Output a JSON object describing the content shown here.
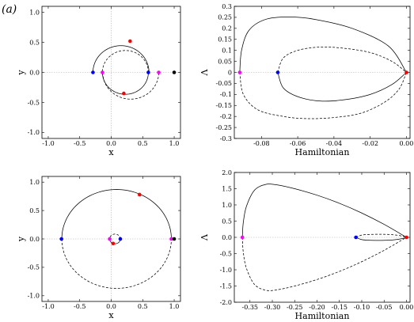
{
  "figure": {
    "panel_label": "(a)"
  },
  "colors": {
    "red": "#ff0000",
    "blue": "#0000ff",
    "magenta": "#ff00ff",
    "black": "#000000",
    "guide": "#b0b0b0"
  },
  "chart_data": [
    {
      "id": "top-left",
      "type": "line",
      "xlabel": "x",
      "ylabel": "y",
      "xlim": [
        -1.1,
        1.1
      ],
      "ylim": [
        -1.1,
        1.1
      ],
      "xticks": [
        -1.0,
        -0.5,
        0.0,
        0.5,
        1.0
      ],
      "yticks": [
        -1.0,
        -0.5,
        0.0,
        0.5,
        1.0
      ],
      "tick_labels_x": [
        "-1.0",
        "-0.5",
        "0.0",
        "0.5",
        "1.0"
      ],
      "tick_labels_y": [
        "-1.0",
        "-0.5",
        "0.0",
        "0.5",
        "1.0"
      ],
      "guides": {
        "x0": true,
        "y0": true
      },
      "series": [
        {
          "kind": "arc",
          "style": "solid",
          "center": [
            0.155,
            0.0
          ],
          "radius": 0.445,
          "from_deg": 0,
          "to_deg": 180
        },
        {
          "kind": "arc",
          "style": "solid",
          "center": [
            0.225,
            0.0
          ],
          "radius": 0.365,
          "from_deg": 180,
          "to_deg": 360
        },
        {
          "kind": "arc",
          "style": "dashed",
          "center": [
            0.31,
            0.0
          ],
          "radius": 0.445,
          "from_deg": 180,
          "to_deg": 360
        },
        {
          "kind": "arc",
          "style": "dashed",
          "center": [
            0.225,
            0.0
          ],
          "radius": 0.365,
          "from_deg": 0,
          "to_deg": 180
        }
      ],
      "points": [
        {
          "x": 0.3,
          "y": 0.52,
          "color": "red"
        },
        {
          "x": 0.2,
          "y": -0.35,
          "color": "red"
        },
        {
          "x": -0.29,
          "y": 0.0,
          "color": "blue"
        },
        {
          "x": 0.59,
          "y": 0.0,
          "color": "blue"
        },
        {
          "x": -0.14,
          "y": 0.0,
          "color": "magenta"
        },
        {
          "x": 0.755,
          "y": 0.0,
          "color": "magenta"
        },
        {
          "x": 1.0,
          "y": 0.0,
          "color": "black"
        }
      ]
    },
    {
      "id": "top-right",
      "type": "line",
      "xlabel": "Hamiltonian",
      "ylabel": "Λ",
      "xlim": [
        -0.095,
        0.002
      ],
      "ylim": [
        -0.3,
        0.3
      ],
      "xticks": [
        -0.08,
        -0.06,
        -0.04,
        -0.02,
        0.0
      ],
      "yticks": [
        -0.3,
        -0.25,
        -0.2,
        -0.15,
        -0.1,
        -0.05,
        0.0,
        0.05,
        0.1,
        0.15,
        0.2,
        0.25,
        0.3
      ],
      "tick_labels_x": [
        "-0.08",
        "-0.06",
        "-0.04",
        "-0.02",
        "0.00"
      ],
      "tick_labels_y": [
        "-0.3",
        "-0.25",
        "-0.2",
        "-0.15",
        "-0.1",
        "-0.05",
        "0",
        "0.05",
        "0.1",
        "0.15",
        "0.2",
        "0.25",
        "0.3"
      ],
      "guides": {
        "x0": false,
        "y0": true
      },
      "series": [
        {
          "kind": "curve",
          "style": "solid",
          "points": [
            [
              0.0,
              0.0
            ],
            [
              -0.01,
              0.12
            ],
            [
              -0.03,
              0.2
            ],
            [
              -0.05,
              0.24
            ],
            [
              -0.065,
              0.252
            ],
            [
              -0.078,
              0.24
            ],
            [
              -0.087,
              0.19
            ],
            [
              -0.091,
              0.1
            ],
            [
              -0.092,
              0.0
            ]
          ]
        },
        {
          "kind": "curve",
          "style": "dashed",
          "points": [
            [
              -0.092,
              0.0
            ],
            [
              -0.09,
              -0.1
            ],
            [
              -0.082,
              -0.17
            ],
            [
              -0.068,
              -0.2
            ],
            [
              -0.055,
              -0.21
            ],
            [
              -0.04,
              -0.205
            ],
            [
              -0.025,
              -0.185
            ],
            [
              -0.012,
              -0.135
            ],
            [
              -0.004,
              -0.075
            ],
            [
              0.0,
              0.0
            ]
          ]
        },
        {
          "kind": "curve",
          "style": "solid",
          "points": [
            [
              -0.071,
              0.0
            ],
            [
              -0.068,
              -0.07
            ],
            [
              -0.06,
              -0.11
            ],
            [
              -0.048,
              -0.13
            ],
            [
              -0.035,
              -0.125
            ],
            [
              -0.02,
              -0.1
            ],
            [
              -0.008,
              -0.055
            ],
            [
              0.0,
              0.0
            ]
          ]
        },
        {
          "kind": "curve",
          "style": "dashed",
          "points": [
            [
              -0.071,
              0.0
            ],
            [
              -0.068,
              0.065
            ],
            [
              -0.06,
              0.1
            ],
            [
              -0.048,
              0.115
            ],
            [
              -0.035,
              0.11
            ],
            [
              -0.02,
              0.09
            ],
            [
              -0.008,
              0.05
            ],
            [
              0.0,
              0.0
            ]
          ]
        }
      ],
      "points": [
        {
          "x": -0.092,
          "y": 0.0,
          "color": "magenta"
        },
        {
          "x": -0.071,
          "y": 0.0,
          "color": "blue"
        },
        {
          "x": 0.0,
          "y": 0.0,
          "color": "red"
        }
      ]
    },
    {
      "id": "bottom-left",
      "type": "line",
      "xlabel": "x",
      "ylabel": "y",
      "xlim": [
        -1.1,
        1.1
      ],
      "ylim": [
        -1.1,
        1.1
      ],
      "xticks": [
        -1.0,
        -0.5,
        0.0,
        0.5,
        1.0
      ],
      "yticks": [
        -1.0,
        -0.5,
        0.0,
        0.5,
        1.0
      ],
      "tick_labels_x": [
        "-1.0",
        "-0.5",
        "0.0",
        "0.5",
        "1.0"
      ],
      "tick_labels_y": [
        "-1.0",
        "-0.5",
        "0.0",
        "0.5",
        "1.0"
      ],
      "guides": {
        "x0": true,
        "y0": true
      },
      "series": [
        {
          "kind": "arc",
          "style": "solid",
          "center": [
            0.085,
            0.0
          ],
          "radius": 0.87,
          "from_deg": 0,
          "to_deg": 180
        },
        {
          "kind": "arc",
          "style": "dashed",
          "center": [
            0.085,
            0.0
          ],
          "radius": 0.87,
          "from_deg": 180,
          "to_deg": 360
        },
        {
          "kind": "arc",
          "style": "solid",
          "center": [
            0.06,
            0.0
          ],
          "radius": 0.085,
          "from_deg": 180,
          "to_deg": 360
        },
        {
          "kind": "arc",
          "style": "dashed",
          "center": [
            0.06,
            0.0
          ],
          "radius": 0.085,
          "from_deg": 0,
          "to_deg": 180
        }
      ],
      "points": [
        {
          "x": 0.45,
          "y": 0.78,
          "color": "red"
        },
        {
          "x": 0.03,
          "y": -0.08,
          "color": "red"
        },
        {
          "x": -0.79,
          "y": 0.0,
          "color": "blue"
        },
        {
          "x": 0.145,
          "y": 0.0,
          "color": "blue"
        },
        {
          "x": -0.025,
          "y": 0.0,
          "color": "magenta"
        },
        {
          "x": 0.955,
          "y": 0.0,
          "color": "magenta"
        },
        {
          "x": 1.0,
          "y": 0.0,
          "color": "black"
        }
      ]
    },
    {
      "id": "bottom-right",
      "type": "line",
      "xlabel": "Hamiltonian",
      "ylabel": "Λ",
      "xlim": [
        -0.385,
        0.008
      ],
      "ylim": [
        -2.0,
        2.0
      ],
      "xticks": [
        -0.35,
        -0.3,
        -0.25,
        -0.2,
        -0.15,
        -0.1,
        -0.05,
        0.0
      ],
      "yticks": [
        -2.0,
        -1.5,
        -1.0,
        -0.5,
        0.0,
        0.5,
        1.0,
        1.5,
        2.0
      ],
      "tick_labels_x": [
        "-0.35",
        "-0.30",
        "-0.25",
        "-0.20",
        "-0.15",
        "-0.10",
        "-0.05",
        "0.00"
      ],
      "tick_labels_y": [
        "-2.0",
        "-1.5",
        "-1.0",
        "-0.5",
        "0.0",
        "0.5",
        "1.0",
        "1.5",
        "2.0"
      ],
      "guides": {
        "x0": false,
        "y0": true
      },
      "series": [
        {
          "kind": "curve",
          "style": "solid",
          "points": [
            [
              0.0,
              0.0
            ],
            [
              -0.05,
              0.4
            ],
            [
              -0.1,
              0.75
            ],
            [
              -0.15,
              1.05
            ],
            [
              -0.2,
              1.3
            ],
            [
              -0.25,
              1.5
            ],
            [
              -0.29,
              1.62
            ],
            [
              -0.315,
              1.63
            ],
            [
              -0.34,
              1.45
            ],
            [
              -0.358,
              0.95
            ],
            [
              -0.365,
              0.45
            ],
            [
              -0.367,
              0.0
            ]
          ]
        },
        {
          "kind": "curve",
          "style": "dashed",
          "points": [
            [
              -0.367,
              0.0
            ],
            [
              -0.365,
              -0.45
            ],
            [
              -0.358,
              -0.95
            ],
            [
              -0.34,
              -1.45
            ],
            [
              -0.315,
              -1.63
            ],
            [
              -0.29,
              -1.62
            ],
            [
              -0.25,
              -1.5
            ],
            [
              -0.2,
              -1.3
            ],
            [
              -0.15,
              -1.05
            ],
            [
              -0.1,
              -0.75
            ],
            [
              -0.05,
              -0.4
            ],
            [
              0.0,
              0.0
            ]
          ]
        },
        {
          "kind": "curve",
          "style": "solid",
          "points": [
            [
              -0.113,
              0.0
            ],
            [
              -0.1,
              -0.07
            ],
            [
              -0.08,
              -0.09
            ],
            [
              -0.055,
              -0.095
            ],
            [
              -0.03,
              -0.08
            ],
            [
              -0.01,
              -0.04
            ],
            [
              0.0,
              0.0
            ]
          ]
        },
        {
          "kind": "curve",
          "style": "dashed",
          "points": [
            [
              -0.113,
              0.0
            ],
            [
              -0.1,
              0.07
            ],
            [
              -0.08,
              0.09
            ],
            [
              -0.055,
              0.095
            ],
            [
              -0.03,
              0.08
            ],
            [
              -0.01,
              0.04
            ],
            [
              0.0,
              0.0
            ]
          ]
        }
      ],
      "points": [
        {
          "x": -0.367,
          "y": 0.0,
          "color": "magenta"
        },
        {
          "x": -0.113,
          "y": 0.0,
          "color": "blue"
        },
        {
          "x": 0.0,
          "y": 0.0,
          "color": "red"
        }
      ]
    }
  ]
}
